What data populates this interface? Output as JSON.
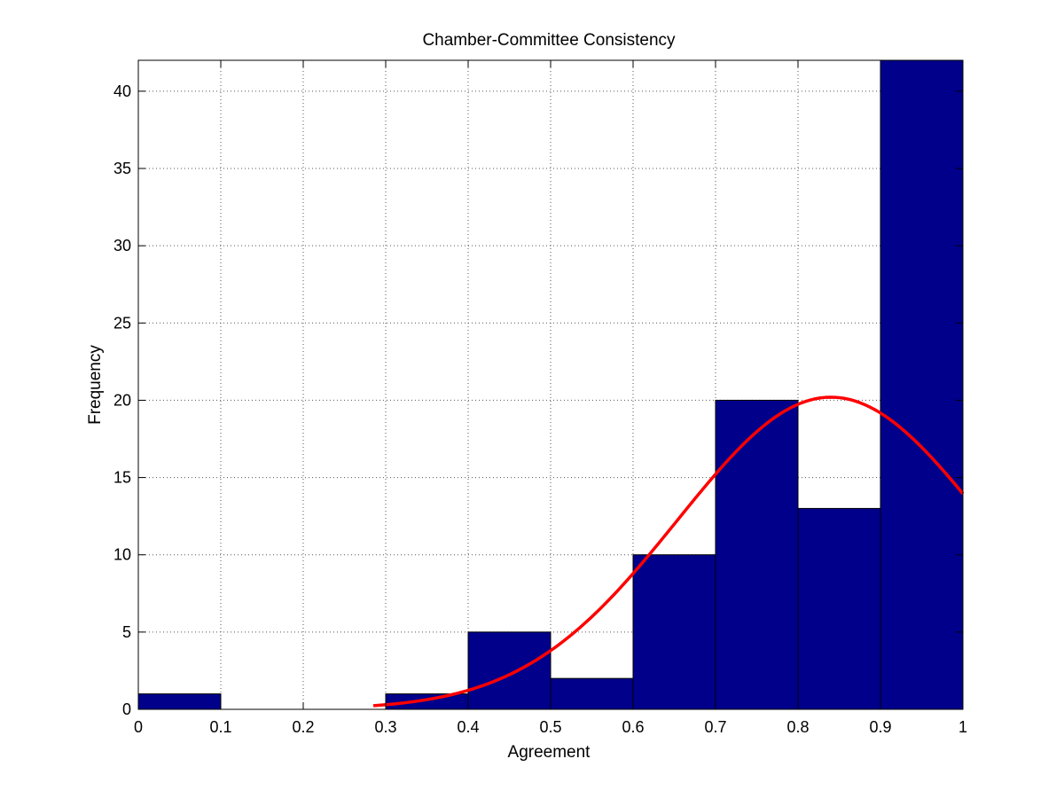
{
  "chart_data": {
    "type": "bar",
    "title": "Chamber-Committee Consistency",
    "xlabel": "Agreement",
    "ylabel": "Frequency",
    "xlim": [
      0,
      1
    ],
    "ylim": [
      0,
      42
    ],
    "grid": true,
    "bin_edges": [
      0,
      0.1,
      0.2,
      0.3,
      0.4,
      0.5,
      0.6,
      0.7,
      0.8,
      0.9,
      1.0
    ],
    "values": [
      1,
      0,
      0,
      1,
      5,
      2,
      10,
      20,
      13,
      42
    ],
    "xticks": [
      "0",
      "0.1",
      "0.2",
      "0.3",
      "0.4",
      "0.5",
      "0.6",
      "0.7",
      "0.8",
      "0.9",
      "1"
    ],
    "yticks": [
      "0",
      "5",
      "10",
      "15",
      "20",
      "25",
      "30",
      "35",
      "40"
    ],
    "fit_curve": {
      "type": "normal",
      "x_start": 0.285,
      "x_end": 1.0,
      "peak_x": 0.84,
      "peak_y": 20.2,
      "sigma": 0.186
    },
    "colors": {
      "bar_fill": "#00008b",
      "bar_edge": "#000000",
      "fit_line": "#ff0000",
      "grid": "#555555"
    }
  }
}
